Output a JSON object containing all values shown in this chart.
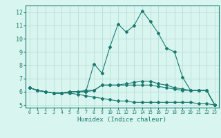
{
  "xlabel": "Humidex (Indice chaleur)",
  "x_values": [
    0,
    1,
    2,
    3,
    4,
    5,
    6,
    7,
    8,
    9,
    10,
    11,
    12,
    13,
    14,
    15,
    16,
    17,
    18,
    19,
    20,
    21,
    22,
    23
  ],
  "line1": [
    6.3,
    6.1,
    6.0,
    5.9,
    5.9,
    6.0,
    6.0,
    6.0,
    6.1,
    6.5,
    6.5,
    6.5,
    6.5,
    6.5,
    6.5,
    6.5,
    6.4,
    6.3,
    6.2,
    6.1,
    6.1,
    6.1,
    6.1,
    5.0
  ],
  "line2": [
    6.3,
    6.1,
    6.0,
    5.9,
    5.9,
    6.0,
    6.0,
    6.0,
    8.1,
    7.4,
    9.4,
    11.1,
    10.5,
    11.0,
    12.1,
    11.3,
    10.4,
    9.3,
    9.0,
    7.1,
    6.1,
    6.1,
    6.1,
    5.0
  ],
  "line3": [
    6.3,
    6.1,
    6.0,
    5.9,
    5.9,
    6.0,
    6.0,
    6.1,
    6.1,
    6.5,
    6.5,
    6.5,
    6.6,
    6.7,
    6.8,
    6.8,
    6.6,
    6.5,
    6.3,
    6.2,
    6.1,
    6.1,
    6.1,
    5.0
  ],
  "line4": [
    6.3,
    6.1,
    6.0,
    5.9,
    5.9,
    5.9,
    5.8,
    5.7,
    5.6,
    5.5,
    5.4,
    5.3,
    5.3,
    5.2,
    5.2,
    5.2,
    5.2,
    5.2,
    5.2,
    5.2,
    5.2,
    5.1,
    5.1,
    5.0
  ],
  "line_color": "#1a7a6e",
  "background_color": "#d8f5f0",
  "grid_color": "#b8ddd8",
  "ylim": [
    4.8,
    12.5
  ],
  "yticks": [
    5,
    6,
    7,
    8,
    9,
    10,
    11,
    12
  ],
  "xlim": [
    -0.5,
    23.5
  ]
}
